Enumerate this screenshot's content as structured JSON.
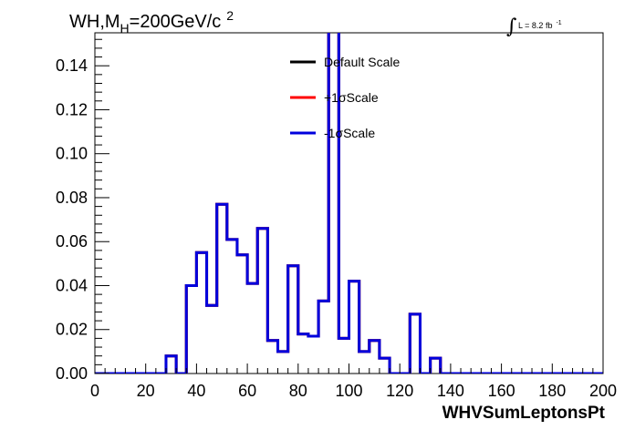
{
  "title": {
    "main": "WH,M",
    "sub": "H",
    "value": "=200GeV/c",
    "sup": "2"
  },
  "luminosity": {
    "integral": "∫",
    "text": "L = 8.2 fb",
    "sup": "-1"
  },
  "chart_data": {
    "type": "line",
    "step": true,
    "xlabel": "WHVSumLeptonsPt",
    "ylabel": "",
    "xlim": [
      0,
      200
    ],
    "ylim": [
      0,
      0.155
    ],
    "x_ticks": [
      "0",
      "20",
      "40",
      "60",
      "80",
      "100",
      "120",
      "140",
      "160",
      "180",
      "200"
    ],
    "y_ticks": [
      "0.00",
      "0.02",
      "0.04",
      "0.06",
      "0.08",
      "0.10",
      "0.12",
      "0.14"
    ],
    "bin_edges": [
      0,
      4,
      8,
      12,
      16,
      20,
      24,
      28,
      32,
      36,
      40,
      44,
      48,
      52,
      56,
      60,
      64,
      68,
      72,
      76,
      80,
      84,
      88,
      92,
      96,
      100,
      104,
      108,
      112,
      116,
      120,
      124,
      128,
      132,
      136,
      140,
      144,
      148,
      152,
      156,
      160,
      164,
      168,
      172,
      176,
      180,
      184,
      188,
      192,
      196,
      200
    ],
    "legend_position": "top-center",
    "series": [
      {
        "name": "Default Scale",
        "color": "#000000",
        "values": [
          0,
          0,
          0,
          0,
          0,
          0,
          0,
          0.008,
          0,
          0.04,
          0.055,
          0.031,
          0.077,
          0.061,
          0.054,
          0.041,
          0.066,
          0.015,
          0.01,
          0.049,
          0.018,
          0.017,
          0.033,
          0.16,
          0.016,
          0.042,
          0.01,
          0.015,
          0.007,
          0,
          0,
          0.027,
          0,
          0.007,
          0,
          0,
          0,
          0,
          0,
          0,
          0,
          0,
          0,
          0,
          0,
          0,
          0,
          0,
          0,
          0
        ]
      },
      {
        "name": "+1σScale",
        "color": "#ff0000",
        "values": [
          0,
          0,
          0,
          0,
          0,
          0,
          0,
          0.008,
          0,
          0.04,
          0.055,
          0.031,
          0.077,
          0.061,
          0.054,
          0.041,
          0.066,
          0.015,
          0.01,
          0.049,
          0.018,
          0.017,
          0.033,
          0.16,
          0.016,
          0.042,
          0.01,
          0.015,
          0.007,
          0,
          0,
          0.027,
          0,
          0.007,
          0,
          0,
          0,
          0,
          0,
          0,
          0,
          0,
          0,
          0,
          0,
          0,
          0,
          0,
          0,
          0
        ]
      },
      {
        "name": "-1σScale",
        "color": "#0000dd",
        "values": [
          0,
          0,
          0,
          0,
          0,
          0,
          0,
          0.008,
          0,
          0.04,
          0.055,
          0.031,
          0.077,
          0.061,
          0.054,
          0.041,
          0.066,
          0.015,
          0.01,
          0.049,
          0.018,
          0.017,
          0.033,
          0.16,
          0.016,
          0.042,
          0.01,
          0.015,
          0.007,
          0,
          0,
          0.027,
          0,
          0.007,
          0,
          0,
          0,
          0,
          0,
          0,
          0,
          0,
          0,
          0,
          0,
          0,
          0,
          0,
          0,
          0
        ]
      }
    ]
  }
}
